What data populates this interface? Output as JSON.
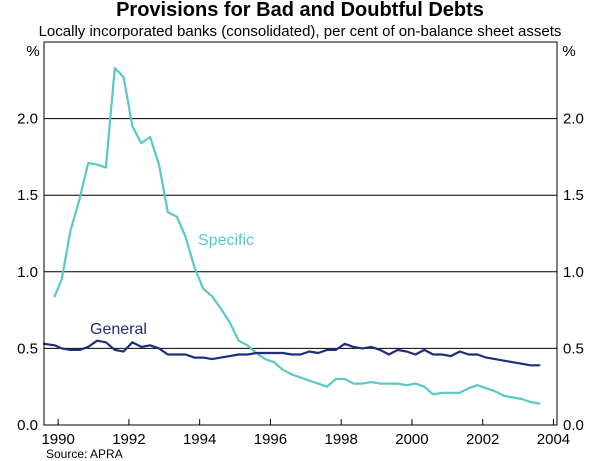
{
  "chart_data": {
    "type": "line",
    "title": "Provisions for Bad and Doubtful Debts",
    "subtitle": "Locally incorporated banks (consolidated), per cent of on-balance sheet assets",
    "ylabel_left": "%",
    "ylabel_right": "%",
    "source": "Source: APRA",
    "xlim": [
      1989.6,
      2004.1
    ],
    "ylim": [
      0,
      2.5
    ],
    "x_ticks": [
      1990,
      1992,
      1994,
      1996,
      1998,
      2000,
      2002,
      2004
    ],
    "x_tick_labels": [
      "1990",
      "1992",
      "1994",
      "1996",
      "1998",
      "2000",
      "2002",
      "2004"
    ],
    "y_ticks": [
      0,
      0.5,
      1.0,
      1.5,
      2.0
    ],
    "y_tick_labels": [
      "0.0",
      "0.5",
      "1.0",
      "1.5",
      "2.0"
    ],
    "grid": true,
    "colors": {
      "specific": "#5bc8c8",
      "general": "#1f2d7a",
      "grid": "#000000"
    },
    "series": [
      {
        "name": "Specific",
        "label": "Specific",
        "x": [
          1989.9,
          1990.1,
          1990.35,
          1990.6,
          1990.85,
          1991.1,
          1991.35,
          1991.6,
          1991.85,
          1992.1,
          1992.35,
          1992.6,
          1992.85,
          1993.1,
          1993.35,
          1993.6,
          1993.85,
          1994.1,
          1994.35,
          1994.6,
          1994.85,
          1995.1,
          1995.35,
          1995.6,
          1995.85,
          1996.1,
          1996.35,
          1996.6,
          1996.85,
          1997.1,
          1997.35,
          1997.6,
          1997.85,
          1998.1,
          1998.35,
          1998.6,
          1998.85,
          1999.1,
          1999.35,
          1999.6,
          1999.85,
          2000.1,
          2000.35,
          2000.6,
          2000.85,
          2001.1,
          2001.35,
          2001.6,
          2001.85,
          2002.1,
          2002.35,
          2002.6,
          2002.85,
          2003.1,
          2003.35,
          2003.6
        ],
        "values": [
          0.84,
          0.95,
          1.27,
          1.47,
          1.71,
          1.7,
          1.68,
          2.33,
          2.27,
          1.95,
          1.84,
          1.88,
          1.7,
          1.39,
          1.36,
          1.23,
          1.03,
          0.89,
          0.84,
          0.76,
          0.67,
          0.55,
          0.52,
          0.47,
          0.43,
          0.41,
          0.36,
          0.33,
          0.31,
          0.29,
          0.27,
          0.25,
          0.3,
          0.3,
          0.27,
          0.27,
          0.28,
          0.27,
          0.27,
          0.27,
          0.26,
          0.27,
          0.25,
          0.2,
          0.21,
          0.21,
          0.21,
          0.24,
          0.26,
          0.24,
          0.22,
          0.19,
          0.18,
          0.17,
          0.15,
          0.14
        ]
      },
      {
        "name": "General",
        "label": "General",
        "x": [
          1989.6,
          1989.9,
          1990.1,
          1990.35,
          1990.6,
          1990.85,
          1991.1,
          1991.35,
          1991.6,
          1991.85,
          1992.1,
          1992.35,
          1992.6,
          1992.85,
          1993.1,
          1993.35,
          1993.6,
          1993.85,
          1994.1,
          1994.35,
          1994.6,
          1994.85,
          1995.1,
          1995.35,
          1995.6,
          1995.85,
          1996.1,
          1996.35,
          1996.6,
          1996.85,
          1997.1,
          1997.35,
          1997.6,
          1997.85,
          1998.1,
          1998.35,
          1998.6,
          1998.85,
          1999.1,
          1999.35,
          1999.6,
          1999.85,
          2000.1,
          2000.35,
          2000.6,
          2000.85,
          2001.1,
          2001.35,
          2001.6,
          2001.85,
          2002.1,
          2002.35,
          2002.6,
          2002.85,
          2003.1,
          2003.35,
          2003.6
        ],
        "values": [
          0.53,
          0.52,
          0.5,
          0.49,
          0.49,
          0.51,
          0.55,
          0.54,
          0.49,
          0.48,
          0.54,
          0.51,
          0.52,
          0.5,
          0.46,
          0.46,
          0.46,
          0.44,
          0.44,
          0.43,
          0.44,
          0.45,
          0.46,
          0.46,
          0.47,
          0.47,
          0.47,
          0.47,
          0.46,
          0.46,
          0.48,
          0.47,
          0.49,
          0.49,
          0.53,
          0.51,
          0.5,
          0.51,
          0.49,
          0.46,
          0.49,
          0.48,
          0.46,
          0.49,
          0.46,
          0.46,
          0.45,
          0.48,
          0.46,
          0.46,
          0.44,
          0.43,
          0.42,
          0.41,
          0.4,
          0.39,
          0.39
        ]
      }
    ]
  }
}
